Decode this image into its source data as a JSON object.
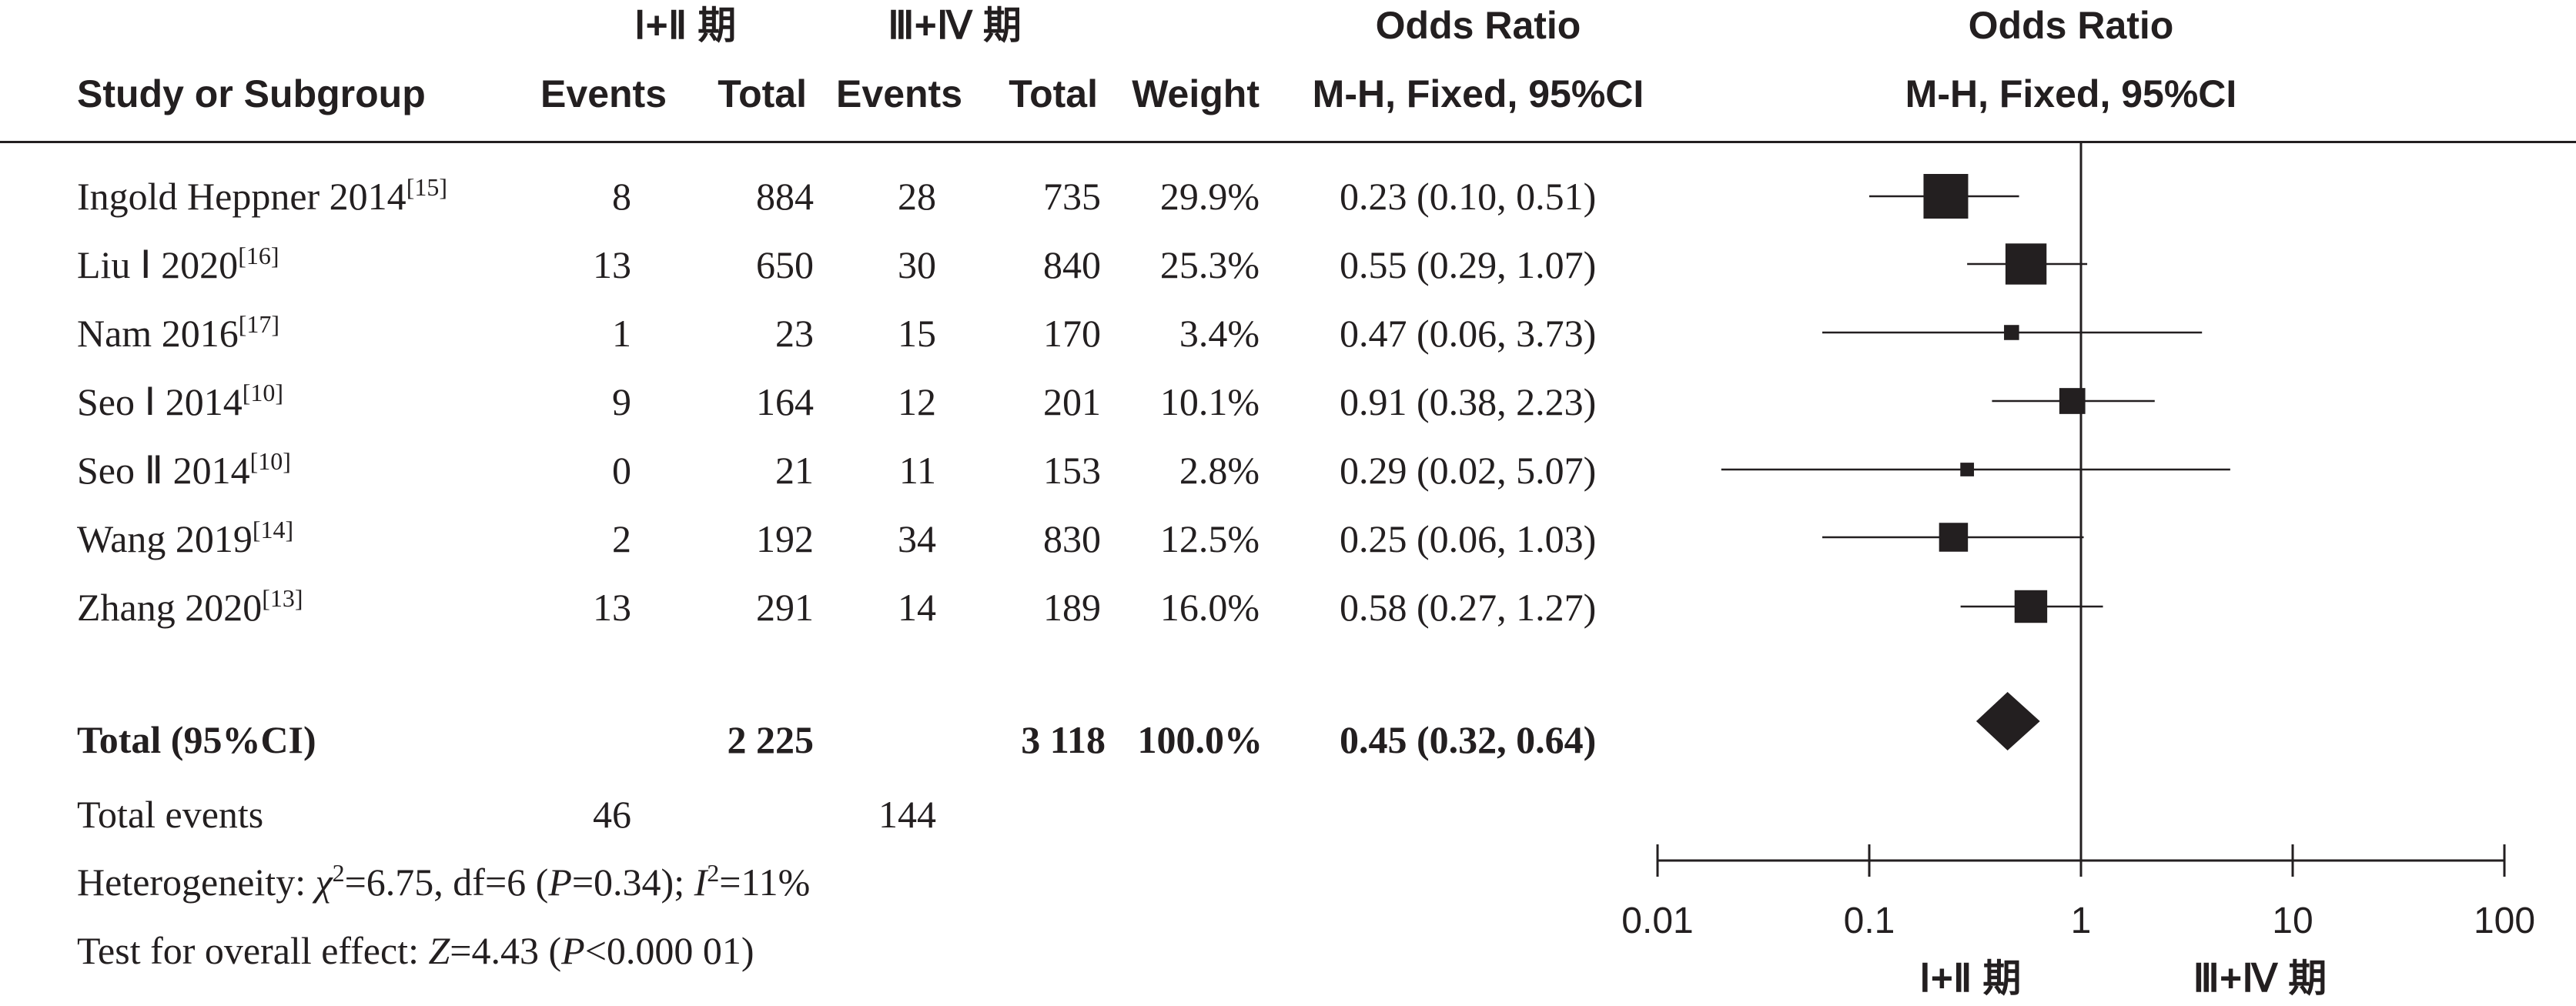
{
  "headers": {
    "group1": "Ⅰ+Ⅱ 期",
    "group2": "Ⅲ+Ⅳ 期",
    "study": "Study or Subgroup",
    "events1": "Events",
    "total1": "Total",
    "events2": "Events",
    "total2": "Total",
    "weight": "Weight",
    "or_top": "Odds Ratio",
    "or_sub": "M-H, Fixed, 95%CI",
    "plot_top": "Odds Ratio",
    "plot_sub": "M-H, Fixed, 95%CI"
  },
  "studies": [
    {
      "name": "Ingold Heppner 2014",
      "ref": "[15]",
      "events1": "8",
      "total1": "884",
      "events2": "28",
      "total2": "735",
      "weight": "29.9%",
      "ci_text": "0.23 (0.10, 0.51)"
    },
    {
      "name": "Liu Ⅰ 2020",
      "ref": "[16]",
      "events1": "13",
      "total1": "650",
      "events2": "30",
      "total2": "840",
      "weight": "25.3%",
      "ci_text": "0.55 (0.29, 1.07)"
    },
    {
      "name": "Nam 2016",
      "ref": "[17]",
      "events1": "1",
      "total1": "23",
      "events2": "15",
      "total2": "170",
      "weight": "3.4%",
      "ci_text": "0.47 (0.06, 3.73)"
    },
    {
      "name": "Seo Ⅰ 2014",
      "ref": "[10]",
      "events1": "9",
      "total1": "164",
      "events2": "12",
      "total2": "201",
      "weight": "10.1%",
      "ci_text": "0.91 (0.38, 2.23)"
    },
    {
      "name": "Seo Ⅱ 2014",
      "ref": "[10]",
      "events1": "0",
      "total1": "21",
      "events2": "11",
      "total2": "153",
      "weight": "2.8%",
      "ci_text": "0.29 (0.02, 5.07)"
    },
    {
      "name": "Wang 2019",
      "ref": "[14]",
      "events1": "2",
      "total1": "192",
      "events2": "34",
      "total2": "830",
      "weight": "12.5%",
      "ci_text": "0.25 (0.06, 1.03)"
    },
    {
      "name": "Zhang 2020",
      "ref": "[13]",
      "events1": "13",
      "total1": "291",
      "events2": "14",
      "total2": "189",
      "weight": "16.0%",
      "ci_text": "0.58 (0.27, 1.27)"
    }
  ],
  "total": {
    "label": "Total (95%CI)",
    "total1": "2 225",
    "total2": "3 118",
    "weight": "100.0%",
    "ci_text": "0.45 (0.32, 0.64)"
  },
  "total_events": {
    "label": "Total events",
    "events1": "46",
    "events2": "144"
  },
  "heterogeneity": {
    "prefix": "Heterogeneity: ",
    "chi": "χ",
    "chi_rest": "=6.75, df=6 (",
    "p": "P",
    "p_rest": "=0.34); ",
    "i": "I",
    "i_rest": "=11%"
  },
  "overall": {
    "prefix": "Test for overall effect: ",
    "z": "Z",
    "z_rest": "=4.43 (",
    "p": "P",
    "p_rest": "<0.000 01)"
  },
  "chart_data": {
    "type": "forest",
    "x_scale": "log",
    "xlim": [
      0.01,
      100
    ],
    "reference_line": 1,
    "x_ticks": [
      0.01,
      0.1,
      1,
      10,
      100
    ],
    "x_tick_labels": [
      "0.01",
      "0.1",
      "1",
      "10",
      "100"
    ],
    "favours_left": "Ⅰ+Ⅱ 期",
    "favours_right": "Ⅲ+Ⅳ 期",
    "series": [
      {
        "or": 0.23,
        "lo": 0.1,
        "hi": 0.51,
        "weight": 29.9
      },
      {
        "or": 0.55,
        "lo": 0.29,
        "hi": 1.07,
        "weight": 25.3
      },
      {
        "or": 0.47,
        "lo": 0.06,
        "hi": 3.73,
        "weight": 3.4
      },
      {
        "or": 0.91,
        "lo": 0.38,
        "hi": 2.23,
        "weight": 10.1
      },
      {
        "or": 0.29,
        "lo": 0.02,
        "hi": 5.07,
        "weight": 2.8
      },
      {
        "or": 0.25,
        "lo": 0.06,
        "hi": 1.03,
        "weight": 12.5
      },
      {
        "or": 0.58,
        "lo": 0.27,
        "hi": 1.27,
        "weight": 16.0
      }
    ],
    "pooled": {
      "or": 0.45,
      "lo": 0.32,
      "hi": 0.64
    }
  }
}
